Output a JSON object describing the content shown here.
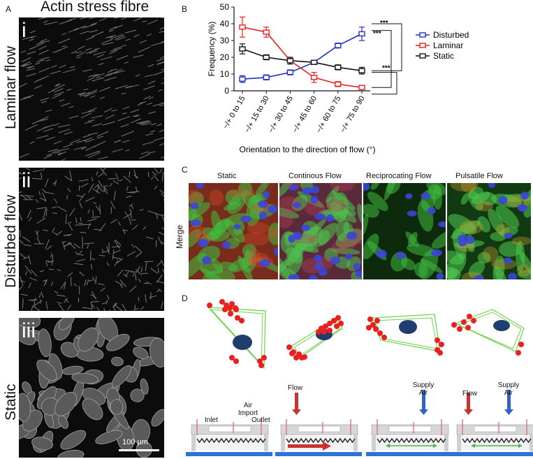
{
  "panelA": {
    "letter": "A",
    "title": "Actin stress fibre",
    "rows": [
      {
        "numeral": "i",
        "label": "Laminar flow"
      },
      {
        "numeral": "ii",
        "label": "Disturbed flow"
      },
      {
        "numeral": "iii",
        "label": "Static"
      }
    ],
    "scalebar": "100 µm"
  },
  "panelB": {
    "letter": "B"
  },
  "chart_data": {
    "type": "line",
    "ylabel": "Frequency (%)",
    "xlabel": "Orientation to the direction of flow (°)",
    "categories": [
      "−/+ 0 to 15",
      "−/+ 15 to 30",
      "−/+ 30 to 45",
      "−/+ 45 to 60",
      "−/+ 60 to 75",
      "−/+ 75 to 90"
    ],
    "ylim": [
      0,
      50
    ],
    "yticks": [
      0,
      10,
      20,
      30,
      40,
      50
    ],
    "series": [
      {
        "name": "Disturbed",
        "color": "#1f2fc9",
        "values": [
          7,
          8,
          11,
          17,
          27,
          34
        ],
        "err": [
          2,
          1.5,
          1.5,
          1,
          1.5,
          4
        ]
      },
      {
        "name": "Laminar",
        "color": "#e8201c",
        "values": [
          38,
          35,
          18,
          8,
          4,
          2
        ],
        "err": [
          6,
          3,
          2,
          3,
          1.5,
          1
        ]
      },
      {
        "name": "Static",
        "color": "#111111",
        "values": [
          25,
          20,
          18,
          17,
          14,
          12
        ],
        "err": [
          3,
          1.5,
          2,
          1,
          1.5,
          2
        ]
      }
    ],
    "significance": [
      "***",
      "***",
      "***"
    ]
  },
  "panelC": {
    "letter": "C",
    "columns": [
      "Static",
      "Continous Flow",
      "Reciprocating Flow",
      "Pulsatile Flow"
    ],
    "rowLabel": "Merge"
  },
  "panelD": {
    "letter": "D",
    "devices": [
      {
        "labels": [
          "Inlet",
          "Air Import",
          "Outlet"
        ]
      },
      {
        "labels": [
          "Flow"
        ]
      },
      {
        "labels": [
          "Supply Air"
        ]
      },
      {
        "labels": [
          "Flow",
          "Supply Air"
        ]
      }
    ]
  }
}
